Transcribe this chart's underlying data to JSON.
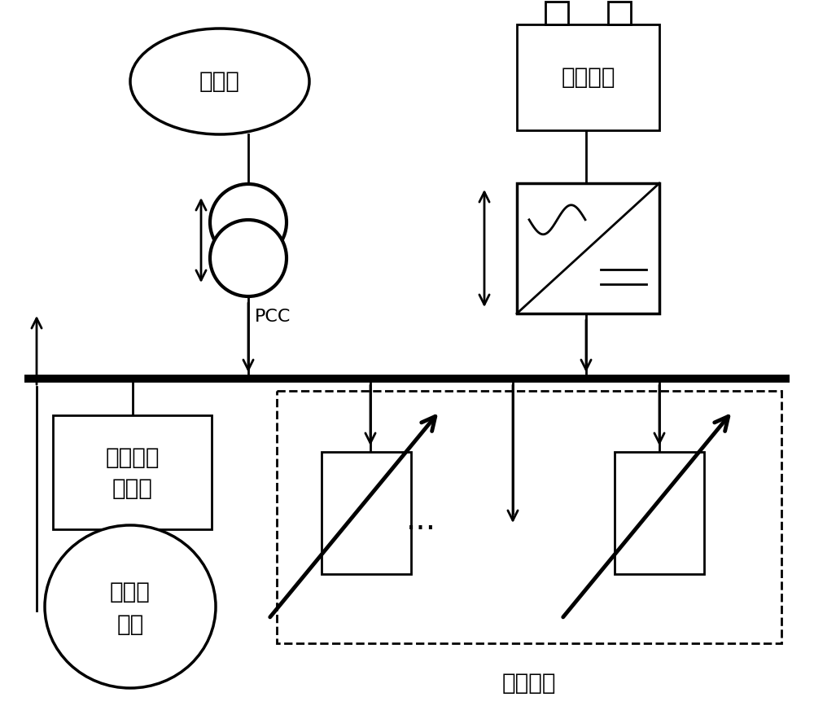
{
  "bg_color": "#ffffff",
  "line_color": "#000000",
  "text_color": "#000000",
  "main_grid_label": "主电网",
  "storage_label": "储能系统",
  "transformer_label1": "电力电子",
  "transformer_label2": "变压器",
  "renewable_label1": "可再生",
  "renewable_label2": "能源",
  "local_load_label": "本地负荷",
  "pcc_label": "PCC",
  "figsize": [
    10,
    8.83
  ],
  "dpi": 100
}
